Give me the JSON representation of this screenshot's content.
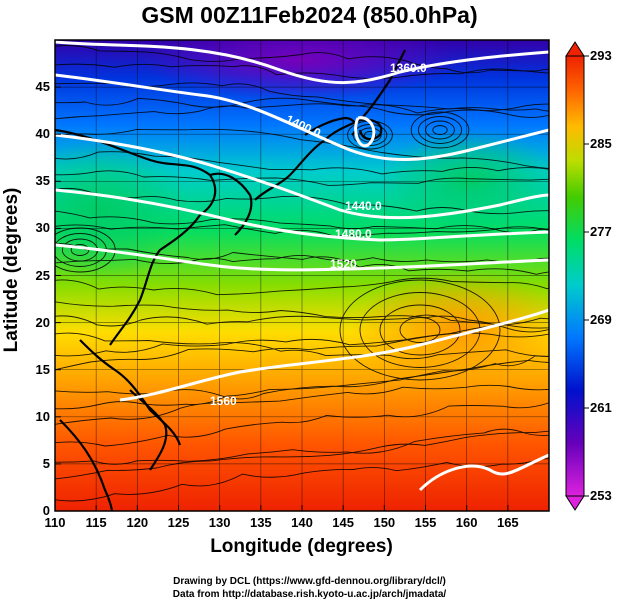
{
  "title": "GSM 00Z11Feb2024 (850.0hPa)",
  "x_axis": {
    "label": "Longitude (degrees)",
    "ticks": [
      "110",
      "115",
      "120",
      "125",
      "130",
      "135",
      "140",
      "145",
      "150",
      "155",
      "160",
      "165"
    ],
    "range": [
      110,
      170
    ]
  },
  "y_axis": {
    "label": "Latitude  (degrees)",
    "ticks": [
      "0",
      "5",
      "10",
      "15",
      "20",
      "25",
      "30",
      "35",
      "40",
      "45"
    ],
    "range": [
      0,
      50
    ]
  },
  "colorbar": {
    "ticks": [
      "253",
      "261",
      "269",
      "277",
      "285",
      "293"
    ],
    "range": [
      253,
      293
    ],
    "colors": [
      "#cc00cc",
      "#5500aa",
      "#0000cc",
      "#0066ff",
      "#00cccc",
      "#00dd88",
      "#33cc00",
      "#aadd00",
      "#ffcc00",
      "#ff8800",
      "#ff4400",
      "#dd1100"
    ]
  },
  "contours": [
    {
      "label": "1360.0"
    },
    {
      "label": "1400.0"
    },
    {
      "label": "1440.0"
    },
    {
      "label": "1480.0"
    },
    {
      "label": "1520"
    },
    {
      "label": "1560"
    }
  ],
  "credits": {
    "line1": "Drawing by DCL (https://www.gfd-dennou.org/library/dcl/)",
    "line2": "Data from http://database.rish.kyoto-u.ac.jp/arch/jmadata/"
  },
  "chart_data": {
    "type": "heatmap",
    "title": "GSM 00Z11Feb2024 (850.0hPa)",
    "xlabel": "Longitude (degrees)",
    "ylabel": "Latitude  (degrees)",
    "xlim": [
      110,
      170
    ],
    "ylim": [
      0,
      50
    ],
    "colorbar_range": [
      253,
      293
    ],
    "colorbar_ticks": [
      253,
      261,
      269,
      277,
      285,
      293
    ],
    "contour_labels": [
      "1360.0",
      "1400.0",
      "1440.0",
      "1480.0",
      "1520",
      "1560"
    ],
    "grid": true
  }
}
